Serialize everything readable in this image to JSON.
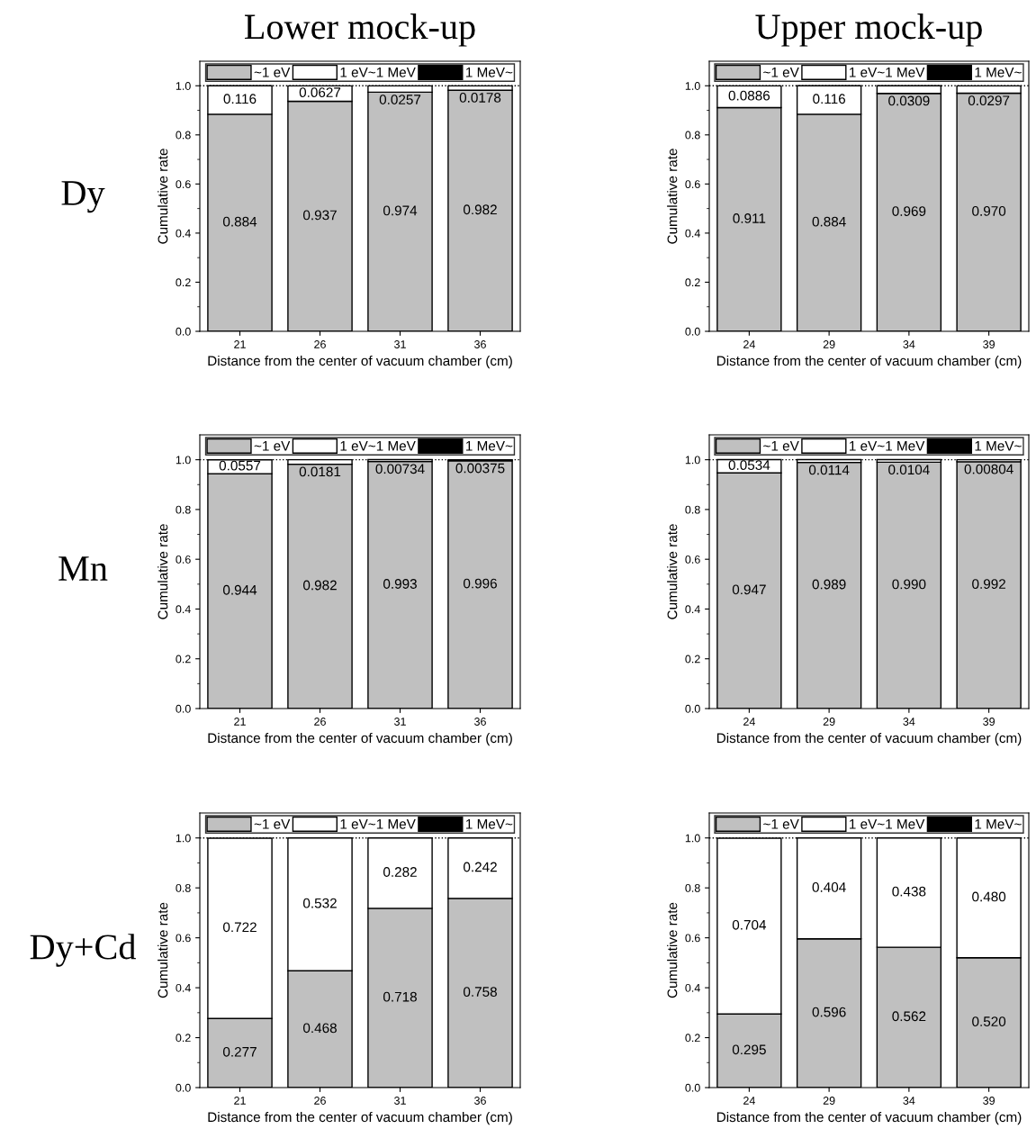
{
  "chart_data": [
    {
      "type": "bar",
      "title": "Lower mock-up",
      "annotations": [
        "Dy"
      ],
      "xlabel": "Distance from the center of vacuum chamber (cm)",
      "ylabel": "Cumulative rate",
      "categories": [
        "21",
        "26",
        "31",
        "36"
      ],
      "stacked": true,
      "ylim": [
        0,
        1.1
      ],
      "yticks": [
        {
          "value": 0,
          "label": "0.0"
        },
        {
          "value": 0.1,
          "label": null
        },
        {
          "value": 0.2,
          "label": "0.2"
        },
        {
          "value": 0.3,
          "label": null
        },
        {
          "value": 0.4,
          "label": "0.4"
        },
        {
          "value": 0.5,
          "label": null
        },
        {
          "value": 0.6,
          "label": "0.6"
        },
        {
          "value": 0.7,
          "label": null
        },
        {
          "value": 0.8,
          "label": "0.8"
        },
        {
          "value": 0.9,
          "label": null
        },
        {
          "value": 1,
          "label": "1.0"
        }
      ],
      "legend": "top",
      "ref_lines": [
        {
          "axis": "y",
          "value": 1,
          "line_style": "dotted",
          "color": "#000000"
        }
      ],
      "series": [
        {
          "name": "~1 eV",
          "color": "#c0c0c0",
          "values": [
            0.884,
            0.937,
            0.974,
            0.982
          ],
          "value_labels": [
            "0.884",
            "0.937",
            "0.974",
            "0.982"
          ]
        },
        {
          "name": "1 eV~1 MeV",
          "color": "#ffffff",
          "values": [
            0.116,
            0.0627,
            0.0257,
            0.0178
          ],
          "value_labels": [
            "0.116",
            "0.0627",
            "0.0257",
            "0.0178"
          ]
        },
        {
          "name": "1 MeV~",
          "color": "#000000",
          "values": [
            null,
            null,
            null,
            null
          ]
        }
      ]
    },
    {
      "type": "bar",
      "title": "Upper mock-up",
      "xlabel": "Distance from the center of vacuum chamber (cm)",
      "ylabel": "Cumulative rate",
      "categories": [
        "24",
        "29",
        "34",
        "39"
      ],
      "stacked": true,
      "ylim": [
        0,
        1.1
      ],
      "yticks": [
        {
          "value": 0,
          "label": "0.0"
        },
        {
          "value": 0.1,
          "label": null
        },
        {
          "value": 0.2,
          "label": "0.2"
        },
        {
          "value": 0.3,
          "label": null
        },
        {
          "value": 0.4,
          "label": "0.4"
        },
        {
          "value": 0.5,
          "label": null
        },
        {
          "value": 0.6,
          "label": "0.6"
        },
        {
          "value": 0.7,
          "label": null
        },
        {
          "value": 0.8,
          "label": "0.8"
        },
        {
          "value": 0.9,
          "label": null
        },
        {
          "value": 1,
          "label": "1.0"
        }
      ],
      "legend": "top",
      "ref_lines": [
        {
          "axis": "y",
          "value": 1,
          "line_style": "dotted",
          "color": "#000000"
        }
      ],
      "series": [
        {
          "name": "~1 eV",
          "color": "#c0c0c0",
          "values": [
            0.911,
            0.884,
            0.969,
            0.97
          ],
          "value_labels": [
            "0.911",
            "0.884",
            "0.969",
            "0.970"
          ]
        },
        {
          "name": "1 eV~1 MeV",
          "color": "#ffffff",
          "values": [
            0.0886,
            0.116,
            0.0309,
            0.0297
          ],
          "value_labels": [
            "0.0886",
            "0.116",
            "0.0309",
            "0.0297"
          ]
        },
        {
          "name": "1 MeV~",
          "color": "#000000",
          "values": [
            null,
            null,
            null,
            null
          ]
        }
      ]
    },
    {
      "type": "bar",
      "annotations": [
        "Mn"
      ],
      "xlabel": "Distance from the center of vacuum chamber (cm)",
      "ylabel": "Cumulative rate",
      "categories": [
        "21",
        "26",
        "31",
        "36"
      ],
      "stacked": true,
      "ylim": [
        0,
        1.1
      ],
      "yticks": [
        {
          "value": 0,
          "label": "0.0"
        },
        {
          "value": 0.1,
          "label": null
        },
        {
          "value": 0.2,
          "label": "0.2"
        },
        {
          "value": 0.3,
          "label": null
        },
        {
          "value": 0.4,
          "label": "0.4"
        },
        {
          "value": 0.5,
          "label": null
        },
        {
          "value": 0.6,
          "label": "0.6"
        },
        {
          "value": 0.7,
          "label": null
        },
        {
          "value": 0.8,
          "label": "0.8"
        },
        {
          "value": 0.9,
          "label": null
        },
        {
          "value": 1,
          "label": "1.0"
        }
      ],
      "legend": "top",
      "ref_lines": [
        {
          "axis": "y",
          "value": 1,
          "line_style": "dotted",
          "color": "#000000"
        }
      ],
      "series": [
        {
          "name": "~1 eV",
          "color": "#c0c0c0",
          "values": [
            0.944,
            0.982,
            0.993,
            0.996
          ],
          "value_labels": [
            "0.944",
            "0.982",
            "0.993",
            "0.996"
          ]
        },
        {
          "name": "1 eV~1 MeV",
          "color": "#ffffff",
          "values": [
            0.0557,
            0.0181,
            0.00734,
            0.00375
          ],
          "value_labels": [
            "0.0557",
            "0.0181",
            "0.00734",
            "0.00375"
          ]
        },
        {
          "name": "1 MeV~",
          "color": "#000000",
          "values": [
            null,
            null,
            null,
            null
          ]
        }
      ]
    },
    {
      "type": "bar",
      "xlabel": "Distance from the center of vacuum chamber (cm)",
      "ylabel": "Cumulative rate",
      "categories": [
        "24",
        "29",
        "34",
        "39"
      ],
      "stacked": true,
      "ylim": [
        0,
        1.1
      ],
      "yticks": [
        {
          "value": 0,
          "label": "0.0"
        },
        {
          "value": 0.1,
          "label": null
        },
        {
          "value": 0.2,
          "label": "0.2"
        },
        {
          "value": 0.3,
          "label": null
        },
        {
          "value": 0.4,
          "label": "0.4"
        },
        {
          "value": 0.5,
          "label": null
        },
        {
          "value": 0.6,
          "label": "0.6"
        },
        {
          "value": 0.7,
          "label": null
        },
        {
          "value": 0.8,
          "label": "0.8"
        },
        {
          "value": 0.9,
          "label": null
        },
        {
          "value": 1,
          "label": "1.0"
        }
      ],
      "legend": "top",
      "ref_lines": [
        {
          "axis": "y",
          "value": 1,
          "line_style": "dotted",
          "color": "#000000"
        }
      ],
      "series": [
        {
          "name": "~1 eV",
          "color": "#c0c0c0",
          "values": [
            0.947,
            0.989,
            0.99,
            0.992
          ],
          "value_labels": [
            "0.947",
            "0.989",
            "0.990",
            "0.992"
          ]
        },
        {
          "name": "1 eV~1 MeV",
          "color": "#ffffff",
          "values": [
            0.0534,
            0.0114,
            0.0104,
            0.00804
          ],
          "value_labels": [
            "0.0534",
            "0.0114",
            "0.0104",
            "0.00804"
          ]
        },
        {
          "name": "1 MeV~",
          "color": "#000000",
          "values": [
            null,
            null,
            null,
            null
          ]
        }
      ]
    },
    {
      "type": "bar",
      "annotations": [
        "Dy+Cd"
      ],
      "xlabel": "Distance from the center of vacuum chamber (cm)",
      "ylabel": "Cumulative rate",
      "categories": [
        "21",
        "26",
        "31",
        "36"
      ],
      "stacked": true,
      "ylim": [
        0,
        1.1
      ],
      "yticks": [
        {
          "value": 0,
          "label": "0.0"
        },
        {
          "value": 0.1,
          "label": null
        },
        {
          "value": 0.2,
          "label": "0.2"
        },
        {
          "value": 0.3,
          "label": null
        },
        {
          "value": 0.4,
          "label": "0.4"
        },
        {
          "value": 0.5,
          "label": null
        },
        {
          "value": 0.6,
          "label": "0.6"
        },
        {
          "value": 0.7,
          "label": null
        },
        {
          "value": 0.8,
          "label": "0.8"
        },
        {
          "value": 0.9,
          "label": null
        },
        {
          "value": 1,
          "label": "1.0"
        }
      ],
      "legend": "top",
      "ref_lines": [
        {
          "axis": "y",
          "value": 1,
          "line_style": "dotted",
          "color": "#000000"
        }
      ],
      "series": [
        {
          "name": "~1 eV",
          "color": "#c0c0c0",
          "values": [
            0.277,
            0.468,
            0.718,
            0.758
          ],
          "value_labels": [
            "0.277",
            "0.468",
            "0.718",
            "0.758"
          ]
        },
        {
          "name": "1 eV~1 MeV",
          "color": "#ffffff",
          "values": [
            0.722,
            0.532,
            0.282,
            0.242
          ],
          "value_labels": [
            "0.722",
            "0.532",
            "0.282",
            "0.242"
          ]
        },
        {
          "name": "1 MeV~",
          "color": "#000000",
          "values": [
            null,
            null,
            null,
            null
          ]
        }
      ]
    },
    {
      "type": "bar",
      "xlabel": "Distance from the center of vacuum chamber (cm)",
      "ylabel": "Cumulative rate",
      "categories": [
        "24",
        "29",
        "34",
        "39"
      ],
      "stacked": true,
      "ylim": [
        0,
        1.1
      ],
      "yticks": [
        {
          "value": 0,
          "label": "0.0"
        },
        {
          "value": 0.1,
          "label": null
        },
        {
          "value": 0.2,
          "label": "0.2"
        },
        {
          "value": 0.3,
          "label": null
        },
        {
          "value": 0.4,
          "label": "0.4"
        },
        {
          "value": 0.5,
          "label": null
        },
        {
          "value": 0.6,
          "label": "0.6"
        },
        {
          "value": 0.7,
          "label": null
        },
        {
          "value": 0.8,
          "label": "0.8"
        },
        {
          "value": 0.9,
          "label": null
        },
        {
          "value": 1,
          "label": "1.0"
        }
      ],
      "legend": "top",
      "ref_lines": [
        {
          "axis": "y",
          "value": 1,
          "line_style": "dotted",
          "color": "#000000"
        }
      ],
      "series": [
        {
          "name": "~1 eV",
          "color": "#c0c0c0",
          "values": [
            0.295,
            0.596,
            0.562,
            0.52
          ],
          "value_labels": [
            "0.295",
            "0.596",
            "0.562",
            "0.520"
          ]
        },
        {
          "name": "1 eV~1 MeV",
          "color": "#ffffff",
          "values": [
            0.704,
            0.404,
            0.438,
            0.48
          ],
          "value_labels": [
            "0.704",
            "0.404",
            "0.438",
            "0.480"
          ]
        },
        {
          "name": "1 MeV~",
          "color": "#000000",
          "values": [
            null,
            null,
            null,
            null
          ]
        }
      ]
    }
  ]
}
